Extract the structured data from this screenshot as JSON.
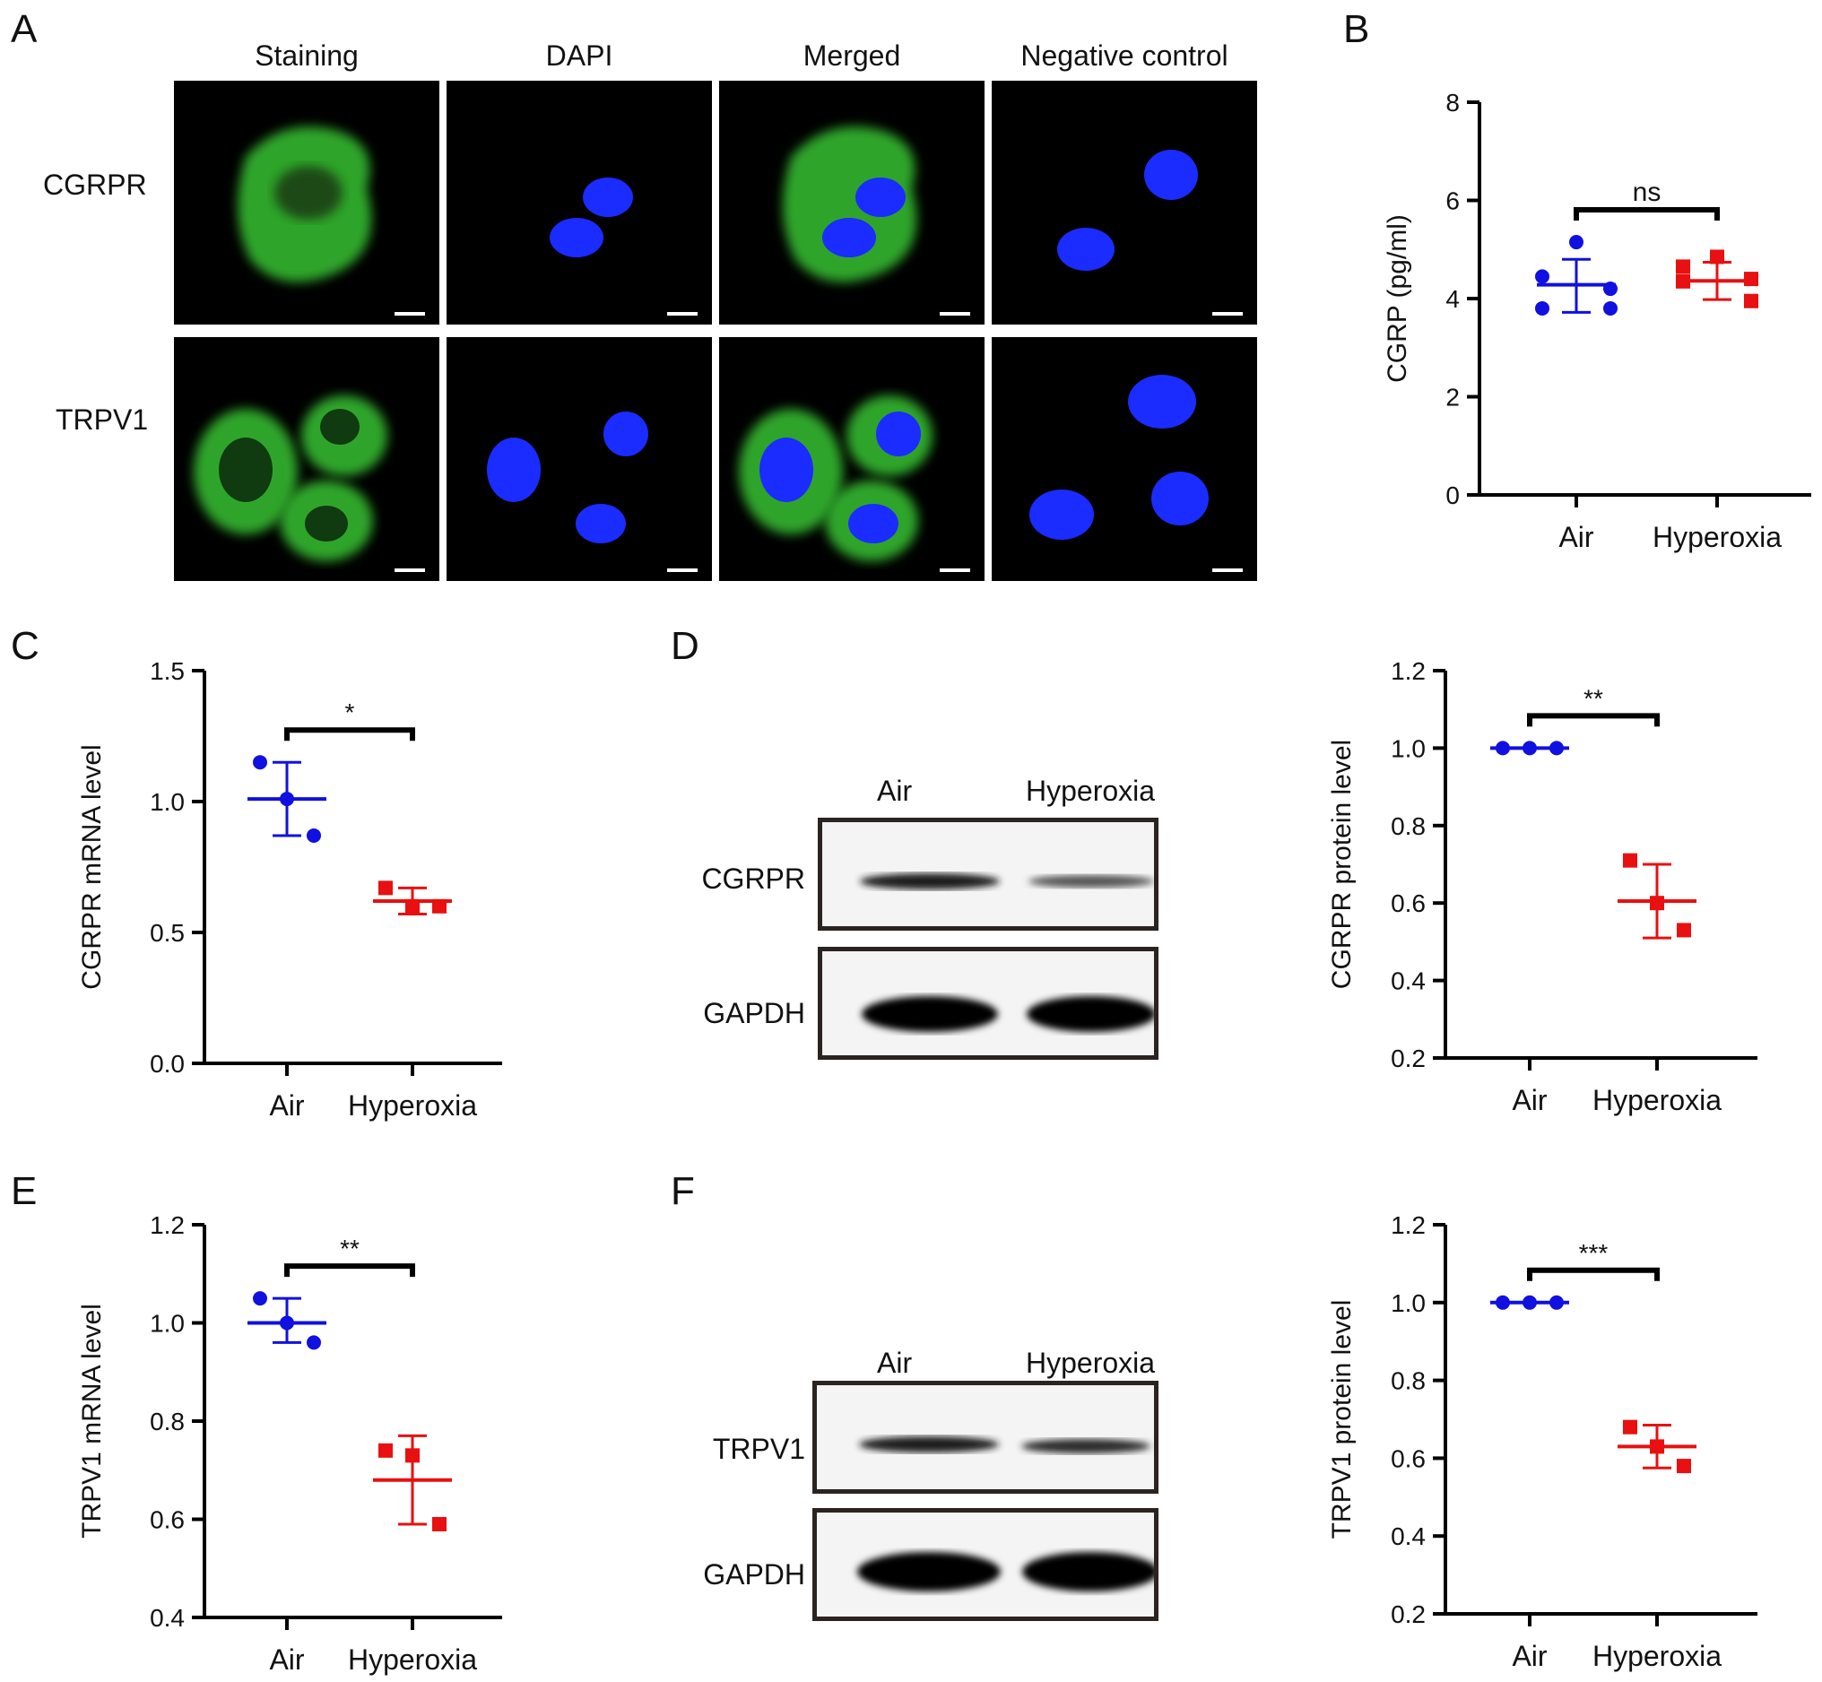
{
  "panel_labels": {
    "A": "A",
    "B": "B",
    "C": "C",
    "D": "D",
    "E": "E",
    "F": "F"
  },
  "micrographs": {
    "columns": [
      "Staining",
      "DAPI",
      "Merged",
      "Negative control"
    ],
    "rows": [
      "CGRPR",
      "TRPV1"
    ]
  },
  "blots": [
    {
      "lanes": [
        "Air",
        "Hyperoxia"
      ],
      "bands": [
        "CGRPR",
        "GAPDH"
      ]
    },
    {
      "lanes": [
        "Air",
        "Hyperoxia"
      ],
      "bands": [
        "TRPV1",
        "GAPDH"
      ]
    }
  ],
  "colors": {
    "air": "#1010e0",
    "hyperoxia": "#e81010",
    "dapi": "#1a2cff",
    "stain": "#3fc33a"
  },
  "chart_data": [
    {
      "id": "B",
      "type": "scatter",
      "ylabel": "CGRP (pg/ml)",
      "ylim": [
        0,
        8
      ],
      "yticks": [
        0,
        2,
        4,
        6,
        8
      ],
      "categories": [
        "Air",
        "Hyperoxia"
      ],
      "significance": "ns",
      "series": [
        {
          "category": "Air",
          "marker": "circle",
          "color": "#1010e0",
          "points": [
            5.15,
            4.45,
            4.2,
            3.8,
            3.8
          ],
          "mean": 4.28,
          "sd_low": 3.72,
          "sd_high": 4.8
        },
        {
          "category": "Hyperoxia",
          "marker": "square",
          "color": "#e81010",
          "points": [
            4.85,
            4.65,
            4.4,
            4.35,
            3.95
          ],
          "mean": 4.36,
          "sd_low": 3.98,
          "sd_high": 4.74
        }
      ]
    },
    {
      "id": "C",
      "type": "scatter",
      "ylabel": "CGRPR mRNA level",
      "ylim": [
        0,
        1.5
      ],
      "yticks": [
        "0.0",
        "0.5",
        "1.0",
        "1.5"
      ],
      "categories": [
        "Air",
        "Hyperoxia"
      ],
      "significance": "*",
      "series": [
        {
          "category": "Air",
          "marker": "circle",
          "color": "#1010e0",
          "points": [
            1.15,
            1.01,
            0.87
          ],
          "mean": 1.01,
          "sd_low": 0.87,
          "sd_high": 1.15
        },
        {
          "category": "Hyperoxia",
          "marker": "square",
          "color": "#e81010",
          "points": [
            0.67,
            0.6,
            0.6
          ],
          "mean": 0.62,
          "sd_low": 0.57,
          "sd_high": 0.67
        }
      ]
    },
    {
      "id": "D",
      "type": "scatter",
      "ylabel": "CGRPR protein level",
      "ylim": [
        0.2,
        1.2
      ],
      "yticks": [
        "0.2",
        "0.4",
        "0.6",
        "0.8",
        "1.0",
        "1.2"
      ],
      "categories": [
        "Air",
        "Hyperoxia"
      ],
      "significance": "**",
      "series": [
        {
          "category": "Air",
          "marker": "circle",
          "color": "#1010e0",
          "points": [
            1.0,
            1.0,
            1.0
          ],
          "mean": 1.0,
          "sd_low": 1.0,
          "sd_high": 1.0
        },
        {
          "category": "Hyperoxia",
          "marker": "square",
          "color": "#e81010",
          "points": [
            0.71,
            0.6,
            0.53
          ],
          "mean": 0.605,
          "sd_low": 0.51,
          "sd_high": 0.7
        }
      ]
    },
    {
      "id": "E",
      "type": "scatter",
      "ylabel": "TRPV1 mRNA level",
      "ylim": [
        0.4,
        1.2
      ],
      "yticks": [
        "0.4",
        "0.6",
        "0.8",
        "1.0",
        "1.2"
      ],
      "categories": [
        "Air",
        "Hyperoxia"
      ],
      "significance": "**",
      "series": [
        {
          "category": "Air",
          "marker": "circle",
          "color": "#1010e0",
          "points": [
            1.05,
            1.0,
            0.96
          ],
          "mean": 1.0,
          "sd_low": 0.96,
          "sd_high": 1.05
        },
        {
          "category": "Hyperoxia",
          "marker": "square",
          "color": "#e81010",
          "points": [
            0.74,
            0.73,
            0.59
          ],
          "mean": 0.68,
          "sd_low": 0.59,
          "sd_high": 0.77
        }
      ]
    },
    {
      "id": "F",
      "type": "scatter",
      "ylabel": "TRPV1 protein level",
      "ylim": [
        0.2,
        1.2
      ],
      "yticks": [
        "0.2",
        "0.4",
        "0.6",
        "0.8",
        "1.0",
        "1.2"
      ],
      "categories": [
        "Air",
        "Hyperoxia"
      ],
      "significance": "***",
      "series": [
        {
          "category": "Air",
          "marker": "circle",
          "color": "#1010e0",
          "points": [
            1.0,
            1.0,
            1.0
          ],
          "mean": 1.0,
          "sd_low": 1.0,
          "sd_high": 1.0
        },
        {
          "category": "Hyperoxia",
          "marker": "square",
          "color": "#e81010",
          "points": [
            0.68,
            0.63,
            0.58
          ],
          "mean": 0.63,
          "sd_low": 0.575,
          "sd_high": 0.685
        }
      ]
    }
  ]
}
